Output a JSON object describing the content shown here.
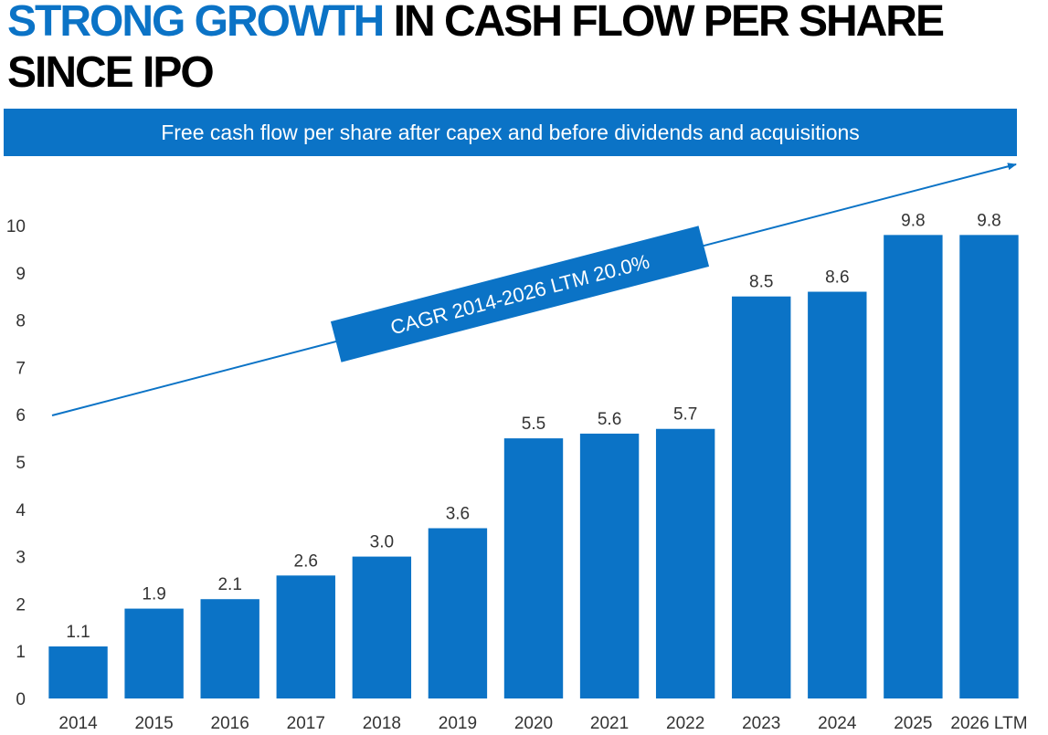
{
  "title": {
    "accent": "STRONG GROWTH",
    "rest": " IN CASH FLOW PER SHARE SINCE IPO"
  },
  "subtitle": "Free cash flow per share after capex and before dividends and acquisitions",
  "annotation": "CAGR 2014-2026 LTM 20.0%",
  "colors": {
    "accent": "#0b73c6",
    "bar": "#0b73c6",
    "text": "#000000",
    "axis_text": "#333333"
  },
  "chart_data": {
    "type": "bar",
    "title": "STRONG GROWTH IN CASH FLOW PER SHARE SINCE IPO",
    "subtitle": "Free cash flow per share after capex and before dividends and acquisitions",
    "xlabel": "",
    "ylabel": "",
    "categories": [
      "2014",
      "2015",
      "2016",
      "2017",
      "2018",
      "2019",
      "2020",
      "2021",
      "2022",
      "2023",
      "2024",
      "2025",
      "2026 LTM"
    ],
    "values": [
      1.1,
      1.9,
      2.1,
      2.6,
      3.0,
      3.6,
      5.5,
      5.6,
      5.7,
      8.5,
      8.6,
      9.8,
      9.8
    ],
    "value_labels": [
      "1.1",
      "1.9",
      "2.1",
      "2.6",
      "3.0",
      "3.6",
      "5.5",
      "5.6",
      "5.7",
      "8.5",
      "8.6",
      "9.8",
      "9.8"
    ],
    "ylim": [
      0,
      10
    ],
    "yticks": [
      "0",
      "1",
      "2",
      "3",
      "4",
      "5",
      "6",
      "7",
      "8",
      "9",
      "10"
    ],
    "grid": false,
    "legend": "none",
    "annotations": [
      "CAGR 2014-2026 LTM 20.0%"
    ]
  }
}
